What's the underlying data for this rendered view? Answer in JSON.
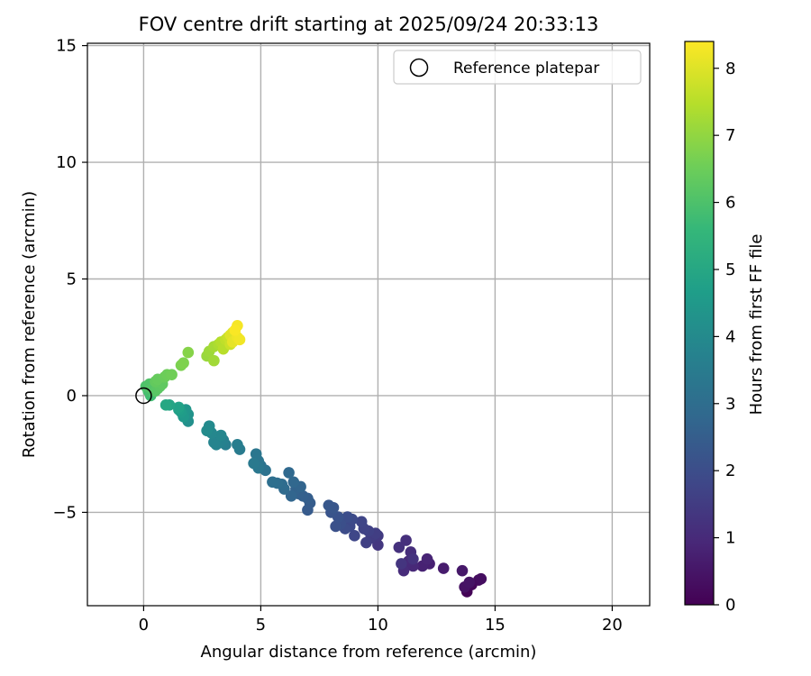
{
  "chart_data": {
    "type": "scatter",
    "title": "FOV centre drift starting at 2025/09/24 20:33:13",
    "xlabel": "Angular distance from reference (arcmin)",
    "ylabel": "Rotation from reference (arcmin)",
    "xlim": [
      -2.4,
      21.6
    ],
    "ylim": [
      -9.0,
      15.1
    ],
    "xticks": [
      0,
      5,
      10,
      15,
      20
    ],
    "xtick_labels": [
      "0",
      "5",
      "10",
      "15",
      "20"
    ],
    "yticks": [
      -5,
      0,
      5,
      10,
      15
    ],
    "ytick_labels": [
      "−5",
      "0",
      "5",
      "10",
      "15"
    ],
    "grid": true,
    "legend": {
      "position": "top-right",
      "label": "Reference platepar"
    },
    "reference_point": {
      "x": 0,
      "y": 0
    },
    "colorbar": {
      "label": "Hours from first FF file",
      "range": [
        0,
        8.4
      ],
      "ticks": [
        0,
        1,
        2,
        3,
        4,
        5,
        6,
        7,
        8
      ],
      "tick_labels": [
        "0",
        "1",
        "2",
        "3",
        "4",
        "5",
        "6",
        "7",
        "8"
      ],
      "colormap": "viridis",
      "colors": [
        "#440154",
        "#482878",
        "#3e4989",
        "#31688e",
        "#26828e",
        "#1f9e89",
        "#35b779",
        "#6ece58",
        "#b5de2b",
        "#fde725"
      ]
    },
    "points": [
      {
        "x": 13.8,
        "y": -8.4,
        "t": 0.05
      },
      {
        "x": 14.0,
        "y": -8.1,
        "t": 0.15
      },
      {
        "x": 14.3,
        "y": -7.9,
        "t": 0.25
      },
      {
        "x": 14.4,
        "y": -7.85,
        "t": 0.3
      },
      {
        "x": 13.7,
        "y": -8.2,
        "t": 0.4
      },
      {
        "x": 13.9,
        "y": -8.0,
        "t": 0.45
      },
      {
        "x": 13.6,
        "y": -7.5,
        "t": 0.55
      },
      {
        "x": 12.8,
        "y": -7.4,
        "t": 0.65
      },
      {
        "x": 12.2,
        "y": -7.2,
        "t": 0.75
      },
      {
        "x": 11.9,
        "y": -7.3,
        "t": 0.8
      },
      {
        "x": 12.1,
        "y": -7.0,
        "t": 0.85
      },
      {
        "x": 11.5,
        "y": -7.3,
        "t": 0.95
      },
      {
        "x": 11.3,
        "y": -7.1,
        "t": 1.0
      },
      {
        "x": 11.1,
        "y": -7.5,
        "t": 1.05
      },
      {
        "x": 11.4,
        "y": -6.7,
        "t": 1.1
      },
      {
        "x": 11.2,
        "y": -6.2,
        "t": 1.15
      },
      {
        "x": 10.9,
        "y": -6.5,
        "t": 1.2
      },
      {
        "x": 11.5,
        "y": -7.0,
        "t": 1.25
      },
      {
        "x": 11.0,
        "y": -7.2,
        "t": 1.3
      },
      {
        "x": 10.0,
        "y": -6.4,
        "t": 1.35
      },
      {
        "x": 10.0,
        "y": -6.0,
        "t": 1.45
      },
      {
        "x": 9.7,
        "y": -6.1,
        "t": 1.5
      },
      {
        "x": 9.9,
        "y": -5.9,
        "t": 1.55
      },
      {
        "x": 9.5,
        "y": -6.3,
        "t": 1.6
      },
      {
        "x": 9.6,
        "y": -5.8,
        "t": 1.65
      },
      {
        "x": 9.4,
        "y": -5.7,
        "t": 1.7
      },
      {
        "x": 9.3,
        "y": -5.4,
        "t": 1.75
      },
      {
        "x": 9.0,
        "y": -6.0,
        "t": 1.8
      },
      {
        "x": 8.8,
        "y": -5.6,
        "t": 1.85
      },
      {
        "x": 8.9,
        "y": -5.3,
        "t": 1.9
      },
      {
        "x": 8.6,
        "y": -5.7,
        "t": 1.95
      },
      {
        "x": 8.7,
        "y": -5.2,
        "t": 2.0
      },
      {
        "x": 8.4,
        "y": -5.5,
        "t": 2.05
      },
      {
        "x": 8.2,
        "y": -5.6,
        "t": 2.1
      },
      {
        "x": 8.3,
        "y": -5.2,
        "t": 2.15
      },
      {
        "x": 8.0,
        "y": -5.0,
        "t": 2.2
      },
      {
        "x": 8.1,
        "y": -4.8,
        "t": 2.25
      },
      {
        "x": 7.9,
        "y": -4.7,
        "t": 2.3
      },
      {
        "x": 7.0,
        "y": -4.9,
        "t": 2.4
      },
      {
        "x": 7.1,
        "y": -4.6,
        "t": 2.45
      },
      {
        "x": 7.0,
        "y": -4.4,
        "t": 2.5
      },
      {
        "x": 6.8,
        "y": -4.3,
        "t": 2.55
      },
      {
        "x": 6.6,
        "y": -4.2,
        "t": 2.6
      },
      {
        "x": 6.5,
        "y": -4.0,
        "t": 2.65
      },
      {
        "x": 6.7,
        "y": -3.9,
        "t": 2.7
      },
      {
        "x": 6.3,
        "y": -4.3,
        "t": 2.75
      },
      {
        "x": 6.4,
        "y": -3.7,
        "t": 2.8
      },
      {
        "x": 6.2,
        "y": -3.3,
        "t": 2.85
      },
      {
        "x": 6.0,
        "y": -4.0,
        "t": 2.9
      },
      {
        "x": 5.9,
        "y": -3.8,
        "t": 2.95
      },
      {
        "x": 5.7,
        "y": -3.75,
        "t": 3.0
      },
      {
        "x": 5.5,
        "y": -3.7,
        "t": 3.05
      },
      {
        "x": 5.2,
        "y": -3.2,
        "t": 3.15
      },
      {
        "x": 5.0,
        "y": -3.0,
        "t": 3.2
      },
      {
        "x": 4.9,
        "y": -2.8,
        "t": 3.25
      },
      {
        "x": 4.8,
        "y": -2.5,
        "t": 3.3
      },
      {
        "x": 4.9,
        "y": -3.1,
        "t": 3.35
      },
      {
        "x": 4.7,
        "y": -2.9,
        "t": 3.4
      },
      {
        "x": 4.1,
        "y": -2.3,
        "t": 3.5
      },
      {
        "x": 4.0,
        "y": -2.1,
        "t": 3.55
      },
      {
        "x": 3.5,
        "y": -2.1,
        "t": 3.6
      },
      {
        "x": 3.4,
        "y": -1.9,
        "t": 3.65
      },
      {
        "x": 3.3,
        "y": -2.0,
        "t": 3.7
      },
      {
        "x": 3.1,
        "y": -2.1,
        "t": 3.75
      },
      {
        "x": 3.0,
        "y": -2.0,
        "t": 3.8
      },
      {
        "x": 3.3,
        "y": -1.7,
        "t": 3.85
      },
      {
        "x": 2.9,
        "y": -1.6,
        "t": 3.9
      },
      {
        "x": 2.8,
        "y": -1.3,
        "t": 4.0
      },
      {
        "x": 2.7,
        "y": -1.5,
        "t": 4.05
      },
      {
        "x": 1.9,
        "y": -1.1,
        "t": 4.2
      },
      {
        "x": 1.9,
        "y": -0.8,
        "t": 4.3
      },
      {
        "x": 1.8,
        "y": -0.6,
        "t": 4.4
      },
      {
        "x": 1.7,
        "y": -0.9,
        "t": 4.5
      },
      {
        "x": 1.6,
        "y": -0.7,
        "t": 4.6
      },
      {
        "x": 1.5,
        "y": -0.6,
        "t": 4.7
      },
      {
        "x": 1.5,
        "y": -0.5,
        "t": 4.8
      },
      {
        "x": 1.1,
        "y": -0.4,
        "t": 4.9
      },
      {
        "x": 0.95,
        "y": -0.4,
        "t": 5.0
      },
      {
        "x": 0.3,
        "y": 0.0,
        "t": 5.8
      },
      {
        "x": 0.2,
        "y": 0.2,
        "t": 5.9
      },
      {
        "x": 0.1,
        "y": 0.4,
        "t": 6.0
      },
      {
        "x": 0.25,
        "y": 0.5,
        "t": 6.05
      },
      {
        "x": 0.35,
        "y": 0.3,
        "t": 6.1
      },
      {
        "x": 0.5,
        "y": 0.2,
        "t": 6.15
      },
      {
        "x": 0.6,
        "y": 0.3,
        "t": 6.2
      },
      {
        "x": 0.7,
        "y": 0.4,
        "t": 6.25
      },
      {
        "x": 0.8,
        "y": 0.5,
        "t": 6.3
      },
      {
        "x": 0.5,
        "y": 0.6,
        "t": 6.35
      },
      {
        "x": 0.6,
        "y": 0.7,
        "t": 6.4
      },
      {
        "x": 0.9,
        "y": 0.8,
        "t": 6.45
      },
      {
        "x": 1.0,
        "y": 0.9,
        "t": 6.5
      },
      {
        "x": 1.2,
        "y": 0.9,
        "t": 6.55
      },
      {
        "x": 1.6,
        "y": 1.3,
        "t": 6.7
      },
      {
        "x": 1.7,
        "y": 1.4,
        "t": 6.75
      },
      {
        "x": 1.9,
        "y": 1.85,
        "t": 6.85
      },
      {
        "x": 2.7,
        "y": 1.7,
        "t": 7.1
      },
      {
        "x": 2.8,
        "y": 1.9,
        "t": 7.15
      },
      {
        "x": 3.0,
        "y": 1.5,
        "t": 7.2
      },
      {
        "x": 3.0,
        "y": 2.1,
        "t": 7.25
      },
      {
        "x": 3.2,
        "y": 2.2,
        "t": 7.35
      },
      {
        "x": 3.3,
        "y": 2.3,
        "t": 7.45
      },
      {
        "x": 3.4,
        "y": 2.0,
        "t": 7.5
      },
      {
        "x": 3.5,
        "y": 2.4,
        "t": 7.6
      },
      {
        "x": 3.6,
        "y": 2.5,
        "t": 7.7
      },
      {
        "x": 3.7,
        "y": 2.2,
        "t": 7.75
      },
      {
        "x": 3.8,
        "y": 2.7,
        "t": 7.85
      },
      {
        "x": 3.9,
        "y": 2.4,
        "t": 7.95
      },
      {
        "x": 3.7,
        "y": 2.6,
        "t": 8.0
      },
      {
        "x": 3.8,
        "y": 2.3,
        "t": 8.1
      },
      {
        "x": 4.0,
        "y": 2.5,
        "t": 8.2
      },
      {
        "x": 4.1,
        "y": 2.4,
        "t": 8.25
      },
      {
        "x": 4.0,
        "y": 3.0,
        "t": 8.3
      },
      {
        "x": 3.9,
        "y": 2.8,
        "t": 8.35
      }
    ]
  }
}
